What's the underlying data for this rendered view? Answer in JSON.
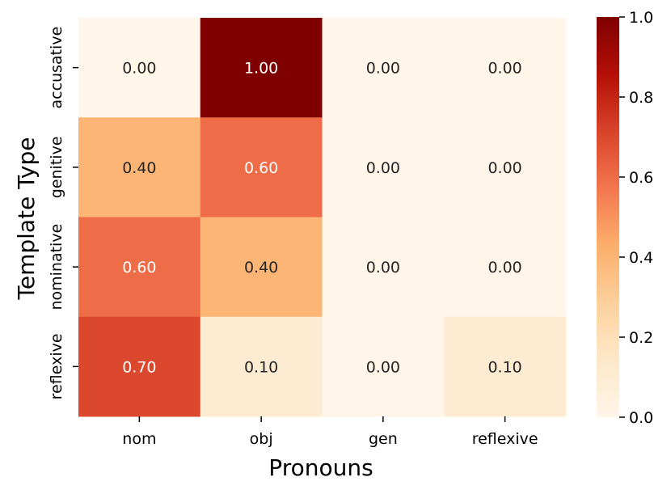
{
  "chart_data": {
    "type": "heatmap",
    "xlabel": "Pronouns",
    "ylabel": "Template Type",
    "x_categories": [
      "nom",
      "obj",
      "gen",
      "reflexive"
    ],
    "y_categories": [
      "accusative",
      "genitive",
      "nominative",
      "reflexive"
    ],
    "values": [
      [
        0.0,
        1.0,
        0.0,
        0.0
      ],
      [
        0.4,
        0.6,
        0.0,
        0.0
      ],
      [
        0.6,
        0.4,
        0.0,
        0.0
      ],
      [
        0.7,
        0.1,
        0.0,
        0.1
      ]
    ],
    "value_format_decimals": 2,
    "colormap": "OrRd-like",
    "color_stops": [
      "#fff5e9",
      "#fee8c8",
      "#fdd09c",
      "#fdae6b",
      "#f3764f",
      "#d9432a",
      "#b40f06",
      "#7f0000"
    ],
    "colorbar": {
      "vmin": 0.0,
      "vmax": 1.0,
      "tick_labels": [
        "0.0",
        "0.2",
        "0.4",
        "0.6",
        "0.8",
        "1.0"
      ]
    }
  }
}
